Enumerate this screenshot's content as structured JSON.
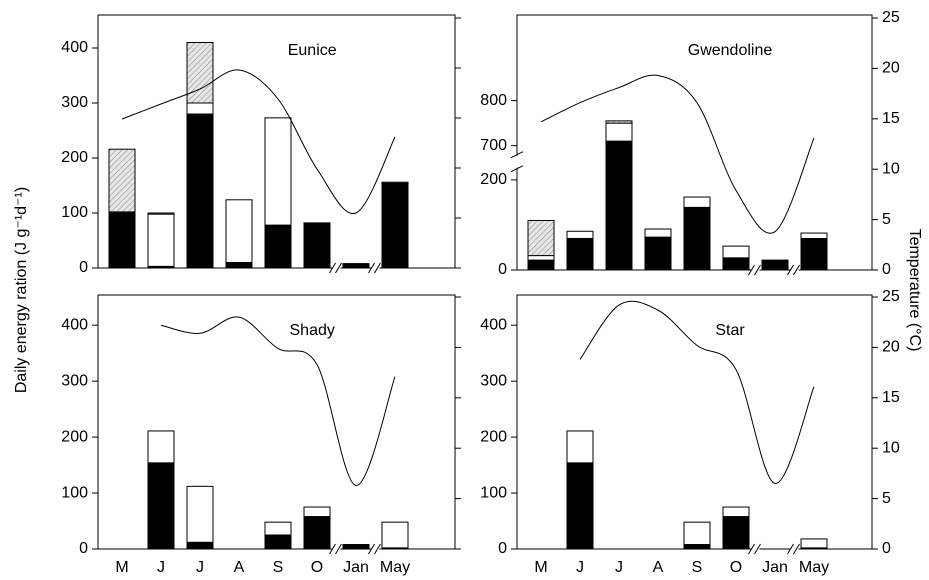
{
  "chart_data": [
    {
      "type": "bar",
      "title": "Eunice",
      "ylabel": "Daily energy ration (J g⁻¹d⁻¹)",
      "categories": [
        null,
        null,
        null,
        null,
        null,
        null,
        null,
        null
      ],
      "ylim": [
        0,
        460
      ],
      "yticks": [
        0,
        100,
        200,
        300,
        400
      ],
      "y2lim": [
        0,
        25.3
      ],
      "y2ticks": [
        0,
        5,
        10,
        15,
        20,
        25
      ],
      "y2labels": false,
      "series": [
        {
          "color": "#000000",
          "values": [
            100,
            3,
            280,
            10,
            78,
            82,
            8,
            154
          ]
        },
        {
          "color": "#ffffff",
          "values": [
            2,
            95,
            20,
            114,
            195,
            0,
            0,
            2
          ]
        },
        {
          "color": "#d9d9d9",
          "hatch": true,
          "values": [
            114,
            2,
            110,
            0,
            0,
            0,
            0,
            0
          ]
        },
        {
          "type": "line",
          "axis": "y2",
          "color": "#000000",
          "values": [
            14.9,
            16.4,
            17.9,
            19.8,
            16.9,
            9.9,
            5.5,
            13.1
          ]
        }
      ]
    },
    {
      "type": "bar",
      "title": "Gwendoline",
      "y2label": "Temperature (°C)",
      "categories": [
        null,
        null,
        null,
        null,
        null,
        null,
        null,
        null
      ],
      "ylim": [
        0,
        990
      ],
      "ybreak": [
        225,
        680
      ],
      "yticks": [
        0,
        200,
        700,
        800
      ],
      "y2lim": [
        0,
        25.3
      ],
      "y2ticks": [
        0,
        5,
        10,
        15,
        20,
        25
      ],
      "y2labels": true,
      "series": [
        {
          "color": "#000000",
          "values": [
            22,
            70,
            710,
            73,
            139,
            27,
            22,
            70
          ]
        },
        {
          "color": "#ffffff",
          "values": [
            10,
            16,
            40,
            18,
            23,
            26,
            0,
            12
          ]
        },
        {
          "color": "#d9d9d9",
          "hatch": true,
          "values": [
            78,
            0,
            5,
            0,
            0,
            0,
            0,
            0
          ]
        },
        {
          "type": "line",
          "axis": "y2",
          "color": "#000000",
          "values": [
            14.7,
            16.6,
            18.1,
            19.3,
            16.6,
            7.9,
            3.8,
            13.1
          ]
        }
      ]
    },
    {
      "type": "bar",
      "title": "Shady",
      "categories": [
        "M",
        "J",
        "J",
        "A",
        "S",
        "O",
        "Jan",
        "May"
      ],
      "ylim": [
        0,
        454
      ],
      "yticks": [
        0,
        100,
        200,
        300,
        400
      ],
      "y2lim": [
        0,
        25.2
      ],
      "y2ticks": [
        0,
        5,
        10,
        15,
        20,
        25
      ],
      "y2labels": false,
      "series": [
        {
          "color": "#000000",
          "values": [
            null,
            154,
            12,
            null,
            25,
            58,
            8,
            2
          ]
        },
        {
          "color": "#ffffff",
          "values": [
            null,
            57,
            100,
            null,
            23,
            17,
            0,
            46
          ]
        },
        {
          "type": "line",
          "axis": "y2",
          "color": "#000000",
          "values": [
            null,
            22.2,
            21.4,
            23.0,
            19.9,
            18.3,
            6.3,
            17.1
          ]
        }
      ]
    },
    {
      "type": "bar",
      "title": "Star",
      "categories": [
        "M",
        "J",
        "J",
        "A",
        "S",
        "O",
        "Jan",
        "May"
      ],
      "ylim": [
        0,
        454
      ],
      "yticks": [
        0,
        100,
        200,
        300,
        400
      ],
      "y2lim": [
        0,
        25.2
      ],
      "y2ticks": [
        0,
        5,
        10,
        15,
        20,
        25
      ],
      "y2labels": true,
      "series": [
        {
          "color": "#000000",
          "values": [
            null,
            154,
            null,
            null,
            8,
            58,
            null,
            2
          ]
        },
        {
          "color": "#ffffff",
          "values": [
            null,
            57,
            null,
            null,
            40,
            17,
            null,
            16
          ]
        },
        {
          "type": "line",
          "axis": "y2",
          "color": "#000000",
          "values": [
            null,
            18.8,
            24.2,
            23.7,
            20.2,
            17.8,
            6.5,
            16.1
          ]
        }
      ]
    }
  ]
}
